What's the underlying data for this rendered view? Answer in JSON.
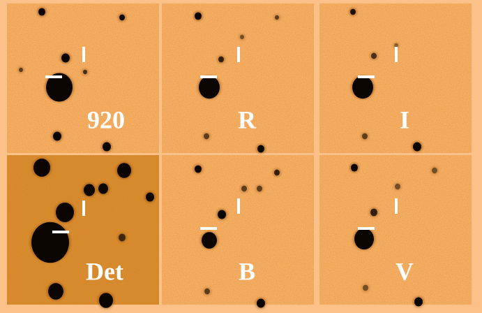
{
  "panels": [
    {
      "label": "920"
    },
    {
      "label": "R"
    },
    {
      "label": "I"
    },
    {
      "label": "Det"
    },
    {
      "label": "B"
    },
    {
      "label": "V"
    }
  ]
}
